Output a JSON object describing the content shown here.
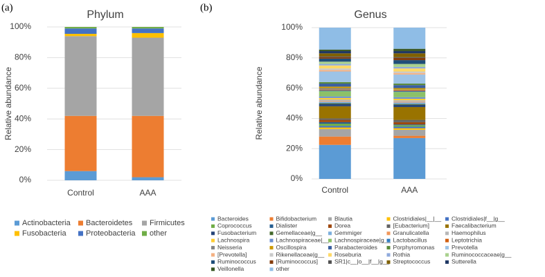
{
  "panel_labels": [
    "(a)",
    "(b)"
  ],
  "chart_data": [
    {
      "type": "stacked_bar",
      "title": "Phylum",
      "y_label": "Relative abundance",
      "categories": [
        "Control",
        "AAA"
      ],
      "ylim": [
        0,
        100
      ],
      "yticks": [
        {
          "value": 0,
          "label": "0%"
        },
        {
          "value": 20,
          "label": "20%"
        },
        {
          "value": 40,
          "label": "40%"
        },
        {
          "value": 60,
          "label": "60%"
        },
        {
          "value": 80,
          "label": "80%"
        },
        {
          "value": 100,
          "label": "100%"
        }
      ],
      "grid": true,
      "series": [
        {
          "name": "Actinobacteria",
          "color": "#5b9bd5",
          "values": [
            6,
            2
          ]
        },
        {
          "name": "Bacteroidetes",
          "color": "#ed7d31",
          "values": [
            36,
            40
          ]
        },
        {
          "name": "Firmicutes",
          "color": "#a5a5a5",
          "values": [
            52,
            51
          ]
        },
        {
          "name": "Fusobacteria",
          "color": "#ffc000",
          "values": [
            1.5,
            3
          ]
        },
        {
          "name": "Proteobacteria",
          "color": "#4472c4",
          "values": [
            3.5,
            3
          ]
        },
        {
          "name": "other",
          "color": "#70ad47",
          "values": [
            1,
            1
          ]
        }
      ]
    },
    {
      "type": "stacked_bar",
      "title": "Genus",
      "y_label": "Relative abundance",
      "categories": [
        "Control",
        "AAA"
      ],
      "ylim": [
        0,
        100
      ],
      "yticks": [
        {
          "value": 0,
          "label": "0%"
        },
        {
          "value": 20,
          "label": "20%"
        },
        {
          "value": 40,
          "label": "40%"
        },
        {
          "value": 60,
          "label": "60%"
        },
        {
          "value": 80,
          "label": "80%"
        },
        {
          "value": 100,
          "label": "100%"
        }
      ],
      "grid": true,
      "series": [
        {
          "name": "Bacteroides",
          "color": "#5b9bd5",
          "values": [
            22.5,
            27
          ]
        },
        {
          "name": "Bifidobacterium",
          "color": "#ed7d31",
          "values": [
            5.5,
            1.5
          ]
        },
        {
          "name": "Blautia",
          "color": "#a5a5a5",
          "values": [
            5,
            4
          ]
        },
        {
          "name": "Clostridiales|__|__",
          "color": "#ffc000",
          "values": [
            1,
            1
          ]
        },
        {
          "name": "Clostridiales|f__|g__",
          "color": "#4472c4",
          "values": [
            1,
            1
          ]
        },
        {
          "name": "Coprococcus",
          "color": "#70ad47",
          "values": [
            1.5,
            1
          ]
        },
        {
          "name": "Dialister",
          "color": "#255e91",
          "values": [
            1,
            0.5
          ]
        },
        {
          "name": "Dorea",
          "color": "#9e480e",
          "values": [
            1.5,
            1.5
          ]
        },
        {
          "name": "[Eubacterium]",
          "color": "#636363",
          "values": [
            1,
            1.5
          ]
        },
        {
          "name": "Faecalibacterium",
          "color": "#997300",
          "values": [
            8,
            8.5
          ]
        },
        {
          "name": "Fusobacterium",
          "color": "#264478",
          "values": [
            1.5,
            1.5
          ]
        },
        {
          "name": "Gemellaceae|g__",
          "color": "#43682b",
          "values": [
            0.5,
            0.5
          ]
        },
        {
          "name": "Gemmiger",
          "color": "#7cafdd",
          "values": [
            1,
            1
          ]
        },
        {
          "name": "Granulicatella",
          "color": "#f1975a",
          "values": [
            0.5,
            0.5
          ]
        },
        {
          "name": "Haemophilus",
          "color": "#b7b7b7",
          "values": [
            1,
            1
          ]
        },
        {
          "name": "Lachnospira",
          "color": "#ffcd33",
          "values": [
            1,
            1
          ]
        },
        {
          "name": "Lachnospiraceae|__",
          "color": "#698ed0",
          "values": [
            1,
            1
          ]
        },
        {
          "name": "Lachnospiraceae|g__",
          "color": "#8cc168",
          "values": [
            3.5,
            3.5
          ]
        },
        {
          "name": "Lactobacillus",
          "color": "#327dc2",
          "values": [
            0.5,
            0.5
          ]
        },
        {
          "name": "Leptotrichia",
          "color": "#d26012",
          "values": [
            0.5,
            0.5
          ]
        },
        {
          "name": "Neisseria",
          "color": "#848484",
          "values": [
            1,
            0.5
          ]
        },
        {
          "name": "Oscillospira",
          "color": "#cc9a00",
          "values": [
            1,
            1
          ]
        },
        {
          "name": "Parabacteroides",
          "color": "#3a5fa0",
          "values": [
            2,
            2
          ]
        },
        {
          "name": "Porphyromonas",
          "color": "#5a8a39",
          "values": [
            1,
            1
          ]
        },
        {
          "name": "Prevotella",
          "color": "#9dc3e6",
          "values": [
            7,
            6
          ]
        },
        {
          "name": "[Prevotella]",
          "color": "#f4b183",
          "values": [
            1,
            1
          ]
        },
        {
          "name": "Rikenellaceae|g__",
          "color": "#c9c9c9",
          "values": [
            1,
            1
          ]
        },
        {
          "name": "Roseburia",
          "color": "#ffd966",
          "values": [
            2,
            2
          ]
        },
        {
          "name": "Rothia",
          "color": "#8faadc",
          "values": [
            1,
            1
          ]
        },
        {
          "name": "Ruminococcaceae|g__",
          "color": "#a9d18e",
          "values": [
            1.5,
            2
          ]
        },
        {
          "name": "Ruminococcus",
          "color": "#1f4e79",
          "values": [
            2,
            2.5
          ]
        },
        {
          "name": "[Ruminococcus]",
          "color": "#843c0c",
          "values": [
            1,
            1.5
          ]
        },
        {
          "name": "SR1|c__|o__|f__|g__",
          "color": "#525252",
          "values": [
            0.5,
            0.5
          ]
        },
        {
          "name": "Streptococcus",
          "color": "#7f6000",
          "values": [
            2,
            2.5
          ]
        },
        {
          "name": "Sutterella",
          "color": "#203864",
          "values": [
            1.5,
            1.5
          ]
        },
        {
          "name": "Veillonella",
          "color": "#385723",
          "values": [
            1,
            1.5
          ]
        },
        {
          "name": "other",
          "color": "#8fbde6",
          "values": [
            14.5,
            14
          ]
        }
      ]
    }
  ]
}
